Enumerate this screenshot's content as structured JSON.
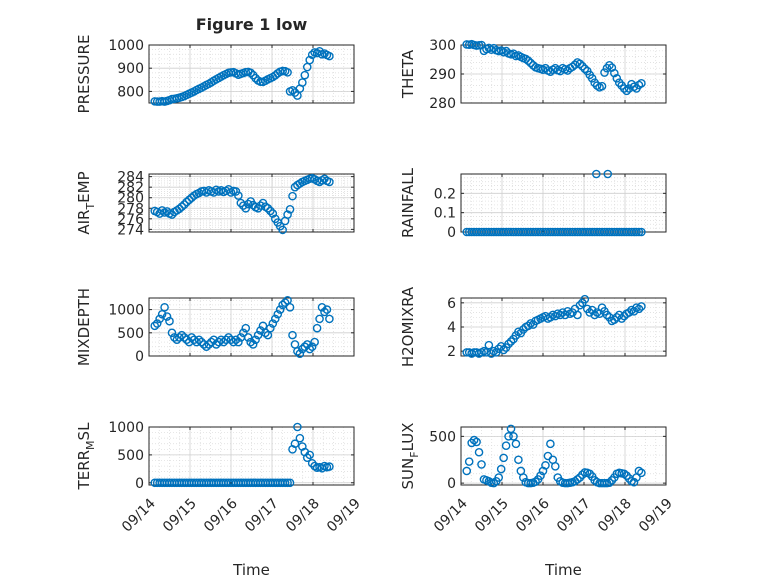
{
  "figure_title": "Figure 1 low",
  "x_axis_title": "Time",
  "x_tick_labels": [
    "09/14",
    "09/15",
    "09/16",
    "09/17",
    "09/18",
    "09/19"
  ],
  "marker_color": "#0072BD",
  "chart_data": [
    {
      "type": "scatter",
      "ylabel": "PRESSURE",
      "ylabel_parts": [
        "PRESSURE"
      ],
      "title": "Figure 1 low",
      "xlim": [
        0,
        5
      ],
      "ylim": [
        750,
        1000
      ],
      "yticks": [
        800,
        900,
        1000
      ],
      "grid": true,
      "x": [
        0.14,
        0.2,
        0.26,
        0.32,
        0.38,
        0.44,
        0.5,
        0.56,
        0.62,
        0.68,
        0.74,
        0.8,
        0.86,
        0.92,
        0.98,
        1.04,
        1.1,
        1.16,
        1.22,
        1.28,
        1.34,
        1.4,
        1.46,
        1.52,
        1.58,
        1.64,
        1.7,
        1.76,
        1.82,
        1.88,
        1.94,
        2.0,
        2.06,
        2.12,
        2.18,
        2.24,
        2.3,
        2.36,
        2.42,
        2.48,
        2.54,
        2.6,
        2.66,
        2.72,
        2.78,
        2.84,
        2.9,
        2.96,
        3.02,
        3.08,
        3.14,
        3.2,
        3.26,
        3.32,
        3.38,
        3.44,
        3.5,
        3.56,
        3.62,
        3.68,
        3.74,
        3.8,
        3.86,
        3.92,
        3.98,
        4.04,
        4.1,
        4.16,
        4.22,
        4.28,
        4.34,
        4.4
      ],
      "y": [
        757,
        756,
        756,
        758,
        756,
        759,
        762,
        767,
        768,
        770,
        773,
        776,
        780,
        785,
        790,
        795,
        800,
        806,
        811,
        816,
        822,
        828,
        833,
        839,
        846,
        852,
        858,
        864,
        870,
        875,
        880,
        882,
        883,
        878,
        872,
        876,
        879,
        883,
        884,
        880,
        870,
        857,
        847,
        842,
        841,
        846,
        852,
        857,
        862,
        869,
        878,
        885,
        888,
        887,
        882,
        800,
        805,
        795,
        782,
        812,
        838,
        870,
        905,
        935,
        958,
        968,
        965,
        973,
        960,
        963,
        957,
        952
      ]
    },
    {
      "type": "scatter",
      "ylabel": "THETA",
      "ylabel_parts": [
        "THETA"
      ],
      "xlim": [
        0,
        5
      ],
      "ylim": [
        280,
        300
      ],
      "yticks": [
        280,
        290,
        300
      ],
      "grid": true,
      "x": [
        0.14,
        0.2,
        0.26,
        0.32,
        0.38,
        0.44,
        0.5,
        0.56,
        0.62,
        0.68,
        0.74,
        0.8,
        0.86,
        0.92,
        0.98,
        1.04,
        1.1,
        1.16,
        1.22,
        1.28,
        1.34,
        1.4,
        1.46,
        1.52,
        1.58,
        1.64,
        1.7,
        1.76,
        1.82,
        1.88,
        1.94,
        2.0,
        2.06,
        2.12,
        2.18,
        2.24,
        2.3,
        2.36,
        2.42,
        2.48,
        2.54,
        2.6,
        2.66,
        2.72,
        2.78,
        2.84,
        2.9,
        2.96,
        3.02,
        3.08,
        3.14,
        3.2,
        3.26,
        3.32,
        3.38,
        3.44,
        3.5,
        3.56,
        3.62,
        3.68,
        3.74,
        3.8,
        3.86,
        3.92,
        3.98,
        4.04,
        4.1,
        4.16,
        4.22,
        4.28,
        4.34,
        4.4
      ],
      "y": [
        300.2,
        300.1,
        300.3,
        300.0,
        299.8,
        299.9,
        300.0,
        298.0,
        298.6,
        299.0,
        298.4,
        298.9,
        298.2,
        297.9,
        298.1,
        297.5,
        297.9,
        297.1,
        296.8,
        297.0,
        296.2,
        296.4,
        295.9,
        295.5,
        295.2,
        294.6,
        293.8,
        293.0,
        292.3,
        292.0,
        291.8,
        291.5,
        292.0,
        291.2,
        290.8,
        291.5,
        292.0,
        291.3,
        291.0,
        292.0,
        291.6,
        291.2,
        292.0,
        292.5,
        293.2,
        294.0,
        293.5,
        292.7,
        291.8,
        291.0,
        289.7,
        288.5,
        287.0,
        286.0,
        285.4,
        285.8,
        290.5,
        292.0,
        293.0,
        292.2,
        290.3,
        288.5,
        287.0,
        286.0,
        285.0,
        284.2,
        285.0,
        286.5,
        285.6,
        285.0,
        286.2,
        286.8
      ]
    },
    {
      "type": "scatter",
      "ylabel": "AIR_TEMP",
      "ylabel_parts": [
        "AIR",
        "T",
        "EMP"
      ],
      "xlim": [
        0,
        5
      ],
      "ylim": [
        273.5,
        284.5
      ],
      "yticks": [
        274,
        276,
        278,
        280,
        282,
        284
      ],
      "grid": true,
      "x": [
        0.14,
        0.2,
        0.26,
        0.32,
        0.38,
        0.44,
        0.5,
        0.56,
        0.62,
        0.68,
        0.74,
        0.8,
        0.86,
        0.92,
        0.98,
        1.04,
        1.1,
        1.16,
        1.22,
        1.28,
        1.34,
        1.4,
        1.46,
        1.52,
        1.58,
        1.64,
        1.7,
        1.76,
        1.82,
        1.88,
        1.94,
        2.0,
        2.06,
        2.12,
        2.18,
        2.24,
        2.3,
        2.36,
        2.42,
        2.48,
        2.54,
        2.6,
        2.66,
        2.72,
        2.78,
        2.84,
        2.9,
        2.96,
        3.02,
        3.08,
        3.14,
        3.2,
        3.26,
        3.32,
        3.38,
        3.44,
        3.5,
        3.56,
        3.62,
        3.68,
        3.74,
        3.8,
        3.86,
        3.92,
        3.98,
        4.04,
        4.1,
        4.16,
        4.22,
        4.28,
        4.34,
        4.4
      ],
      "y": [
        277.5,
        277.3,
        277.0,
        277.6,
        277.2,
        277.4,
        277.0,
        276.8,
        277.3,
        277.6,
        277.9,
        278.3,
        278.7,
        279.2,
        279.6,
        280.0,
        280.4,
        280.7,
        280.9,
        281.2,
        281.3,
        281.0,
        281.4,
        281.2,
        281.0,
        281.5,
        281.2,
        281.4,
        281.1,
        281.3,
        281.6,
        281.0,
        281.3,
        281.2,
        280.4,
        279.0,
        278.5,
        278.0,
        278.8,
        279.3,
        278.6,
        278.2,
        278.0,
        278.5,
        279.0,
        278.3,
        278.0,
        277.5,
        277.0,
        276.0,
        275.3,
        274.6,
        273.9,
        275.6,
        276.8,
        277.8,
        280.3,
        282.0,
        282.4,
        282.7,
        283.0,
        283.2,
        283.4,
        283.6,
        283.7,
        283.5,
        283.2,
        283.0,
        283.3,
        283.6,
        283.2,
        283.0
      ]
    },
    {
      "type": "scatter",
      "ylabel": "RAINFALL",
      "ylabel_parts": [
        "RAINFALL"
      ],
      "xlim": [
        0,
        5
      ],
      "ylim": [
        0,
        0.3
      ],
      "yticks": [
        0,
        0.1,
        0.2
      ],
      "grid": true,
      "x": [
        0.14,
        0.2,
        0.26,
        0.32,
        0.38,
        0.44,
        0.5,
        0.56,
        0.62,
        0.68,
        0.74,
        0.8,
        0.86,
        0.92,
        0.98,
        1.04,
        1.1,
        1.16,
        1.22,
        1.28,
        1.34,
        1.4,
        1.46,
        1.52,
        1.58,
        1.64,
        1.7,
        1.76,
        1.82,
        1.88,
        1.94,
        2.0,
        2.06,
        2.12,
        2.18,
        2.24,
        2.3,
        2.36,
        2.42,
        2.48,
        2.54,
        2.6,
        2.66,
        2.72,
        2.78,
        2.84,
        2.9,
        2.96,
        3.02,
        3.08,
        3.14,
        3.2,
        3.26,
        3.32,
        3.38,
        3.44,
        3.5,
        3.56,
        3.62,
        3.68,
        3.74,
        3.8,
        3.86,
        3.92,
        3.98,
        4.04,
        4.1,
        4.16,
        4.22,
        4.28,
        4.34,
        4.4,
        3.3,
        3.58
      ],
      "y": [
        0,
        0,
        0,
        0,
        0,
        0,
        0,
        0,
        0,
        0,
        0,
        0,
        0,
        0,
        0,
        0,
        0,
        0,
        0,
        0,
        0,
        0,
        0,
        0,
        0,
        0,
        0,
        0,
        0,
        0,
        0,
        0,
        0,
        0,
        0,
        0,
        0,
        0,
        0,
        0,
        0,
        0,
        0,
        0,
        0,
        0,
        0,
        0,
        0,
        0,
        0,
        0,
        0,
        0,
        0,
        0,
        0,
        0,
        0,
        0,
        0,
        0,
        0,
        0,
        0,
        0,
        0,
        0,
        0,
        0,
        0,
        0,
        0.3,
        0.3
      ]
    },
    {
      "type": "scatter",
      "ylabel": "MIXDEPTH",
      "ylabel_parts": [
        "MIXDEPTH"
      ],
      "xlim": [
        0,
        5
      ],
      "ylim": [
        0,
        1250
      ],
      "yticks": [
        0,
        500,
        1000
      ],
      "grid": true,
      "x": [
        0.14,
        0.2,
        0.26,
        0.32,
        0.38,
        0.44,
        0.5,
        0.56,
        0.62,
        0.68,
        0.74,
        0.8,
        0.86,
        0.92,
        0.98,
        1.04,
        1.1,
        1.16,
        1.22,
        1.28,
        1.34,
        1.4,
        1.46,
        1.52,
        1.58,
        1.64,
        1.7,
        1.76,
        1.82,
        1.88,
        1.94,
        2.0,
        2.06,
        2.12,
        2.18,
        2.24,
        2.3,
        2.36,
        2.42,
        2.48,
        2.54,
        2.6,
        2.66,
        2.72,
        2.78,
        2.84,
        2.9,
        2.96,
        3.02,
        3.08,
        3.14,
        3.2,
        3.26,
        3.32,
        3.38,
        3.44,
        3.5,
        3.56,
        3.62,
        3.68,
        3.74,
        3.8,
        3.86,
        3.92,
        3.98,
        4.04,
        4.1,
        4.16,
        4.22,
        4.28,
        4.34,
        4.4
      ],
      "y": [
        650,
        700,
        800,
        900,
        1050,
        850,
        750,
        500,
        400,
        350,
        400,
        450,
        400,
        350,
        300,
        400,
        350,
        300,
        350,
        300,
        250,
        200,
        250,
        300,
        350,
        250,
        300,
        350,
        300,
        350,
        400,
        350,
        300,
        350,
        300,
        400,
        500,
        600,
        400,
        300,
        250,
        350,
        450,
        550,
        650,
        500,
        450,
        600,
        700,
        800,
        900,
        1000,
        1100,
        1150,
        1200,
        1050,
        450,
        250,
        100,
        50,
        150,
        200,
        250,
        150,
        200,
        300,
        600,
        800,
        1050,
        950,
        1000,
        800
      ]
    },
    {
      "type": "scatter",
      "ylabel": "H2OMIXRA",
      "ylabel_parts": [
        "H2OMIXRA"
      ],
      "xlim": [
        0,
        5
      ],
      "ylim": [
        1.6,
        6.4
      ],
      "yticks": [
        2,
        4,
        6
      ],
      "grid": true,
      "x": [
        0.14,
        0.2,
        0.26,
        0.32,
        0.38,
        0.44,
        0.5,
        0.56,
        0.62,
        0.68,
        0.74,
        0.8,
        0.86,
        0.92,
        0.98,
        1.04,
        1.1,
        1.16,
        1.22,
        1.28,
        1.34,
        1.4,
        1.46,
        1.52,
        1.58,
        1.64,
        1.7,
        1.76,
        1.82,
        1.88,
        1.94,
        2.0,
        2.06,
        2.12,
        2.18,
        2.24,
        2.3,
        2.36,
        2.42,
        2.48,
        2.54,
        2.6,
        2.66,
        2.72,
        2.78,
        2.84,
        2.9,
        2.96,
        3.02,
        3.08,
        3.14,
        3.2,
        3.26,
        3.32,
        3.38,
        3.44,
        3.5,
        3.56,
        3.62,
        3.68,
        3.74,
        3.8,
        3.86,
        3.92,
        3.98,
        4.04,
        4.1,
        4.16,
        4.22,
        4.28,
        4.34,
        4.4
      ],
      "y": [
        1.9,
        1.9,
        1.8,
        1.9,
        1.9,
        1.8,
        1.9,
        2.0,
        1.9,
        2.5,
        1.8,
        2.0,
        1.9,
        2.2,
        2.4,
        2.1,
        2.3,
        2.6,
        2.8,
        3.0,
        3.3,
        3.6,
        3.5,
        3.8,
        4.0,
        4.1,
        4.3,
        4.2,
        4.5,
        4.6,
        4.7,
        4.8,
        4.9,
        4.7,
        4.8,
        5.0,
        4.9,
        5.1,
        5.0,
        5.2,
        5.0,
        5.3,
        5.1,
        5.2,
        5.5,
        5.0,
        5.8,
        6.0,
        6.3,
        5.5,
        5.2,
        5.4,
        5.0,
        5.2,
        5.1,
        5.6,
        5.3,
        5.0,
        4.8,
        4.5,
        4.6,
        4.8,
        5.0,
        4.7,
        4.9,
        5.1,
        5.2,
        5.4,
        5.3,
        5.6,
        5.5,
        5.7
      ]
    },
    {
      "type": "scatter",
      "ylabel": "TERR_MSL",
      "ylabel_parts": [
        "TERR",
        "M",
        "SL"
      ],
      "xlim": [
        0,
        5
      ],
      "ylim": [
        -40,
        1000
      ],
      "yticks": [
        0,
        500,
        1000
      ],
      "grid": true,
      "x": [
        0.14,
        0.2,
        0.26,
        0.32,
        0.38,
        0.44,
        0.5,
        0.56,
        0.62,
        0.68,
        0.74,
        0.8,
        0.86,
        0.92,
        0.98,
        1.04,
        1.1,
        1.16,
        1.22,
        1.28,
        1.34,
        1.4,
        1.46,
        1.52,
        1.58,
        1.64,
        1.7,
        1.76,
        1.82,
        1.88,
        1.94,
        2.0,
        2.06,
        2.12,
        2.18,
        2.24,
        2.3,
        2.36,
        2.42,
        2.48,
        2.54,
        2.6,
        2.66,
        2.72,
        2.78,
        2.84,
        2.9,
        2.96,
        3.02,
        3.08,
        3.14,
        3.2,
        3.26,
        3.32,
        3.38,
        3.44,
        3.5,
        3.56,
        3.62,
        3.68,
        3.74,
        3.8,
        3.86,
        3.92,
        3.98,
        4.04,
        4.1,
        4.16,
        4.22,
        4.28,
        4.34,
        4.4
      ],
      "y": [
        0,
        0,
        0,
        0,
        0,
        0,
        0,
        0,
        0,
        0,
        0,
        0,
        0,
        0,
        0,
        0,
        0,
        0,
        0,
        0,
        0,
        0,
        0,
        0,
        0,
        0,
        0,
        0,
        0,
        0,
        0,
        0,
        0,
        0,
        0,
        0,
        0,
        0,
        0,
        0,
        0,
        0,
        0,
        0,
        0,
        0,
        0,
        0,
        0,
        0,
        0,
        0,
        0,
        0,
        0,
        0,
        600,
        700,
        1000,
        800,
        650,
        550,
        450,
        500,
        350,
        300,
        270,
        280,
        260,
        300,
        280,
        290
      ]
    },
    {
      "type": "scatter",
      "ylabel": "SUN_FLUX",
      "ylabel_parts": [
        "SUN",
        "F",
        "LUX"
      ],
      "xlim": [
        0,
        5
      ],
      "ylim": [
        -20,
        600
      ],
      "yticks": [
        0,
        500
      ],
      "grid": true,
      "x": [
        0.14,
        0.2,
        0.26,
        0.32,
        0.38,
        0.44,
        0.5,
        0.56,
        0.62,
        0.68,
        0.74,
        0.8,
        0.86,
        0.92,
        0.98,
        1.04,
        1.1,
        1.16,
        1.22,
        1.28,
        1.34,
        1.4,
        1.46,
        1.52,
        1.58,
        1.64,
        1.7,
        1.76,
        1.82,
        1.88,
        1.94,
        2.0,
        2.06,
        2.12,
        2.18,
        2.24,
        2.3,
        2.36,
        2.42,
        2.48,
        2.54,
        2.6,
        2.66,
        2.72,
        2.78,
        2.84,
        2.9,
        2.96,
        3.02,
        3.08,
        3.14,
        3.2,
        3.26,
        3.32,
        3.38,
        3.44,
        3.5,
        3.56,
        3.62,
        3.68,
        3.74,
        3.8,
        3.86,
        3.92,
        3.98,
        4.04,
        4.1,
        4.16,
        4.22,
        4.28,
        4.34,
        4.4
      ],
      "y": [
        130,
        230,
        430,
        460,
        440,
        330,
        200,
        40,
        30,
        20,
        5,
        0,
        20,
        60,
        150,
        270,
        400,
        500,
        580,
        500,
        420,
        250,
        130,
        60,
        10,
        0,
        0,
        5,
        15,
        40,
        80,
        130,
        190,
        290,
        420,
        250,
        180,
        60,
        20,
        5,
        0,
        0,
        5,
        10,
        20,
        40,
        60,
        90,
        115,
        110,
        100,
        70,
        30,
        10,
        0,
        0,
        0,
        0,
        5,
        30,
        60,
        100,
        110,
        105,
        100,
        80,
        50,
        20,
        10,
        60,
        130,
        110
      ]
    }
  ]
}
